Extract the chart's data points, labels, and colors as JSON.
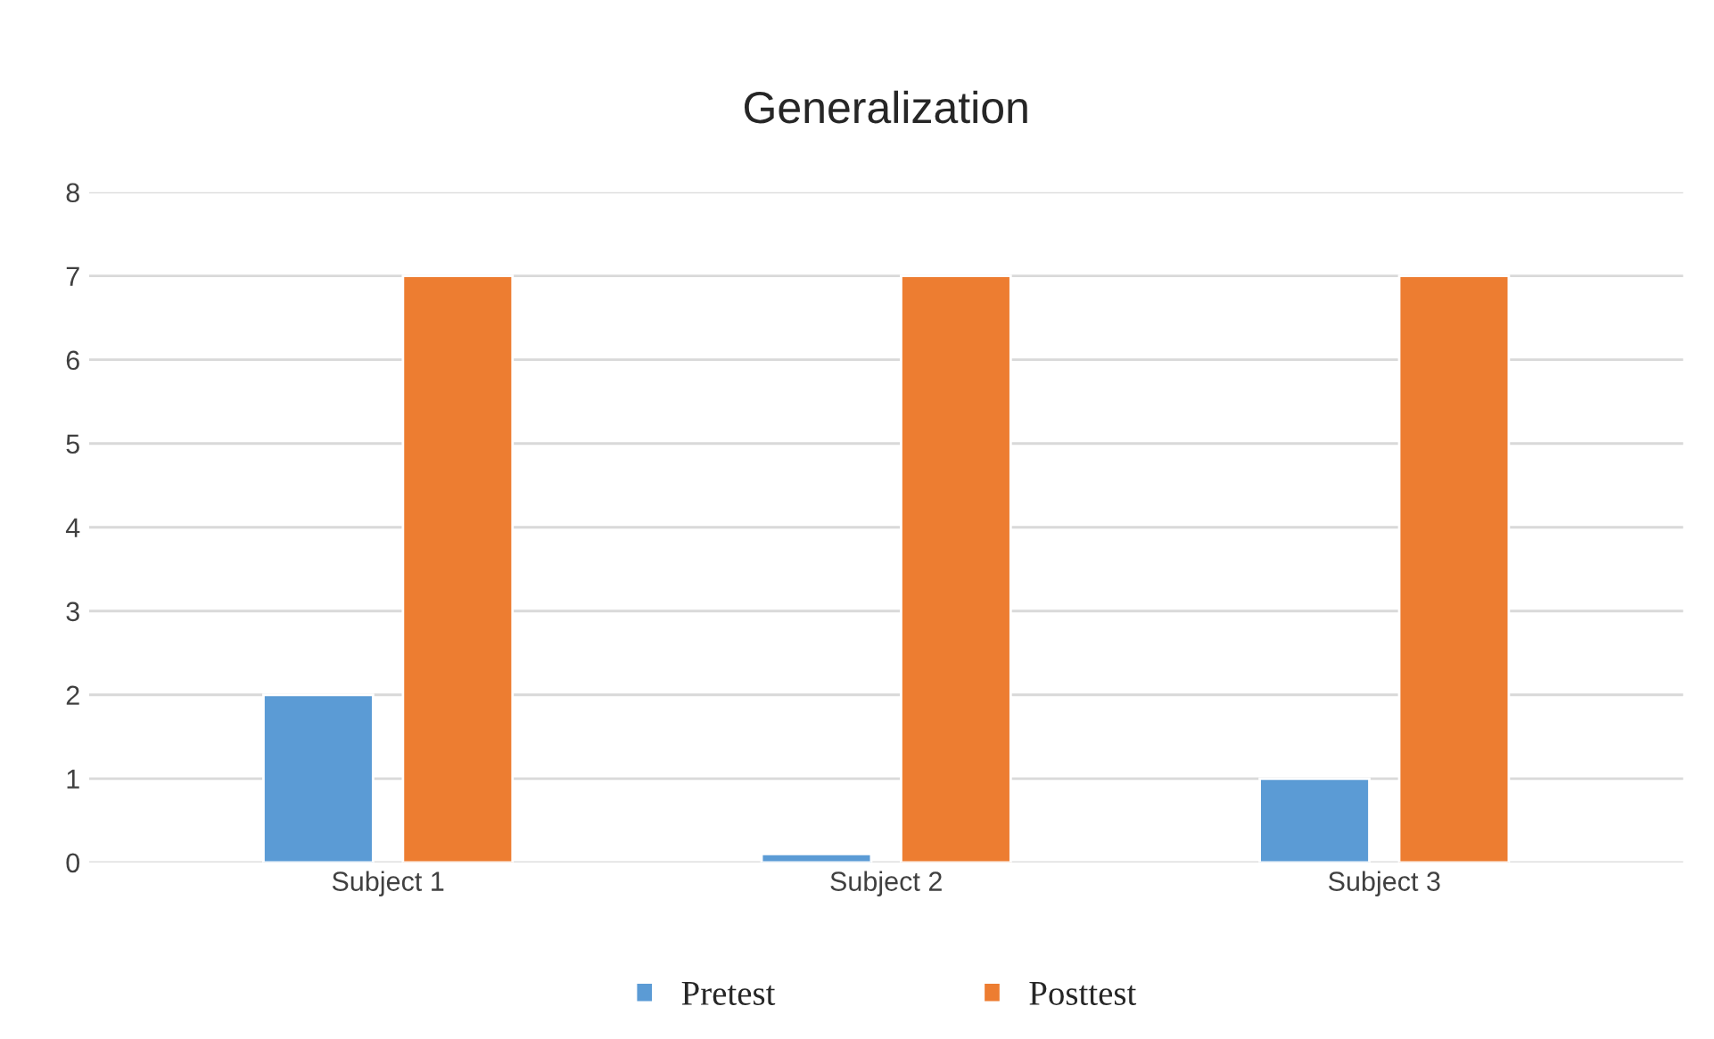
{
  "chart_data": {
    "type": "bar",
    "title": "Generalization",
    "categories": [
      "Subject 1",
      "Subject 2",
      "Subject 3"
    ],
    "series": [
      {
        "name": "Pretest",
        "color": "#5b9bd5",
        "values": [
          2,
          0.1,
          1
        ]
      },
      {
        "name": "Posttest",
        "color": "#ed7d31",
        "values": [
          7,
          7,
          7
        ]
      }
    ],
    "ylim": [
      0,
      8
    ],
    "yticks": [
      0,
      1,
      2,
      3,
      4,
      5,
      6,
      7,
      8
    ],
    "grid": "y",
    "legend": "bottom"
  }
}
